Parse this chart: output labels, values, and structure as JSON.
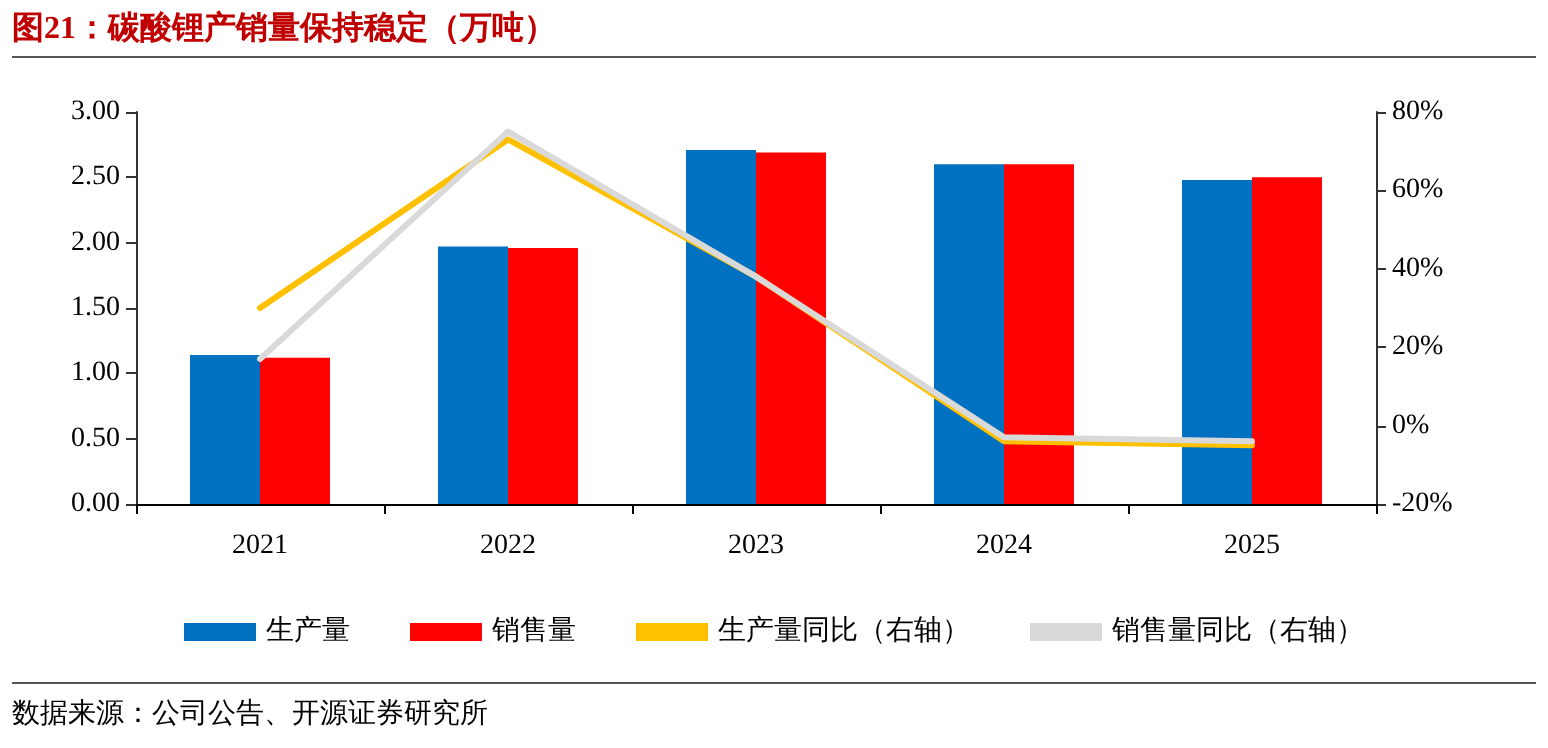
{
  "chart_data": {
    "type": "bar",
    "title": "图21：碳酸锂产销量保持稳定（万吨）",
    "annotations": [
      "数据来源：公司公告、开源证券研究所"
    ],
    "categories": [
      "2021",
      "2022",
      "2023",
      "2024",
      "2025"
    ],
    "series": [
      {
        "name": "生产量",
        "color": "#0070c0",
        "values": [
          1.14,
          1.97,
          2.71,
          2.6,
          2.48
        ]
      },
      {
        "name": "销售量",
        "color": "#ff0000",
        "values": [
          1.12,
          1.96,
          2.69,
          2.6,
          2.5
        ]
      },
      {
        "name": "生产量同比（右轴）",
        "type": "line",
        "axis": "y2",
        "color": "#ffc000",
        "values": [
          30,
          73,
          38,
          -4,
          -5
        ]
      },
      {
        "name": "销售量同比（右轴）",
        "type": "line",
        "axis": "y2",
        "color": "#d9d9d9",
        "values": [
          17,
          75,
          38,
          -3,
          -4
        ]
      }
    ],
    "ylim": [
      0,
      3
    ],
    "yticks": [
      {
        "value": 0,
        "label": "0.00"
      },
      {
        "value": 0.5,
        "label": "0.50"
      },
      {
        "value": 1,
        "label": "1.00"
      },
      {
        "value": 1.5,
        "label": "1.50"
      },
      {
        "value": 2,
        "label": "2.00"
      },
      {
        "value": 2.5,
        "label": "2.50"
      },
      {
        "value": 3,
        "label": "3.00"
      }
    ],
    "y2lim": [
      -20,
      80
    ],
    "y2ticks": [
      {
        "value": -20,
        "label": "-20%"
      },
      {
        "value": 0,
        "label": "0%"
      },
      {
        "value": 20,
        "label": "20%"
      },
      {
        "value": 40,
        "label": "40%"
      },
      {
        "value": 60,
        "label": "60%"
      },
      {
        "value": 80,
        "label": "80%"
      }
    ],
    "grid": false,
    "legend": "bottom",
    "marker": "none",
    "line_style": "solid"
  }
}
